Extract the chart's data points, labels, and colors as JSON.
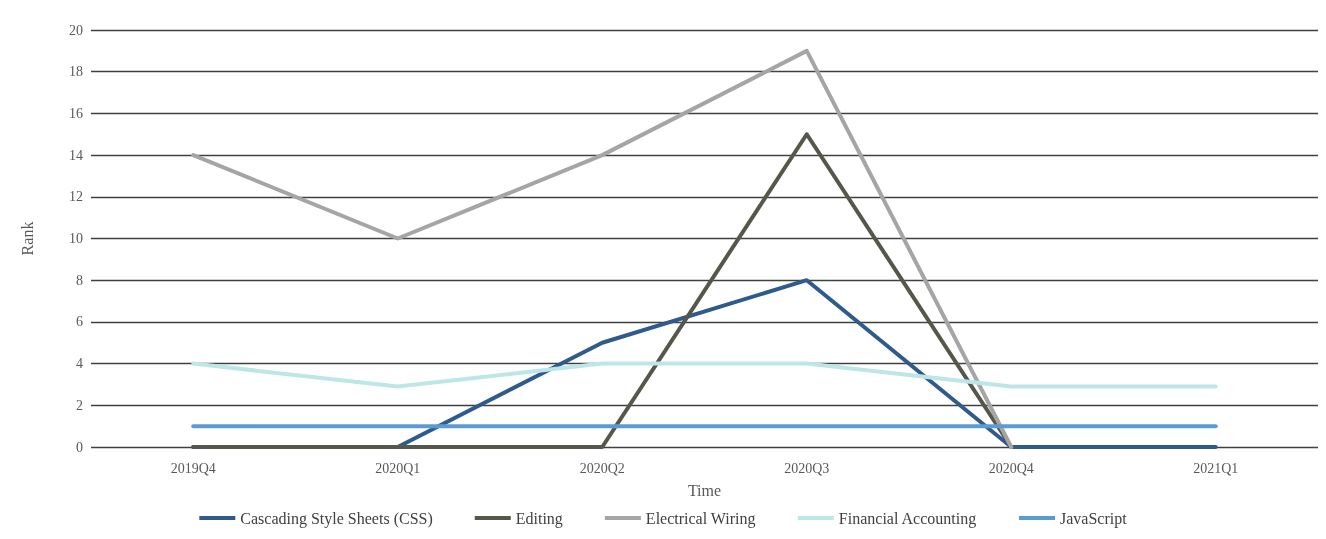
{
  "chart_data": {
    "type": "line",
    "xlabel": "Time",
    "ylabel": "Rank",
    "categories": [
      "2019Q4",
      "2020Q1",
      "2020Q2",
      "2020Q3",
      "2020Q4",
      "2021Q1"
    ],
    "series": [
      {
        "name": "Cascading Style Sheets (CSS)",
        "color": "#2f5b8c",
        "values": [
          0,
          0,
          5,
          8,
          0,
          0
        ]
      },
      {
        "name": "Editing",
        "color": "#56574a",
        "values": [
          0,
          0,
          0,
          15,
          0,
          null
        ]
      },
      {
        "name": "Electrical Wiring",
        "color": "#a5a5a5",
        "values": [
          14,
          10,
          14,
          19,
          0,
          null
        ]
      },
      {
        "name": "Financial Accounting",
        "color": "#bde6e6",
        "values": [
          4,
          2.9,
          4,
          4,
          2.9,
          2.9
        ]
      },
      {
        "name": "JavaScript",
        "color": "#5b9bd5",
        "values": [
          1,
          1,
          1,
          1,
          1,
          1
        ]
      }
    ],
    "ylim": [
      0,
      20
    ],
    "yticks": [
      0,
      2,
      4,
      6,
      8,
      10,
      12,
      14,
      16,
      18,
      20
    ],
    "grid": "y",
    "legend": "bottom",
    "marker": "none",
    "line_style": "solid"
  }
}
